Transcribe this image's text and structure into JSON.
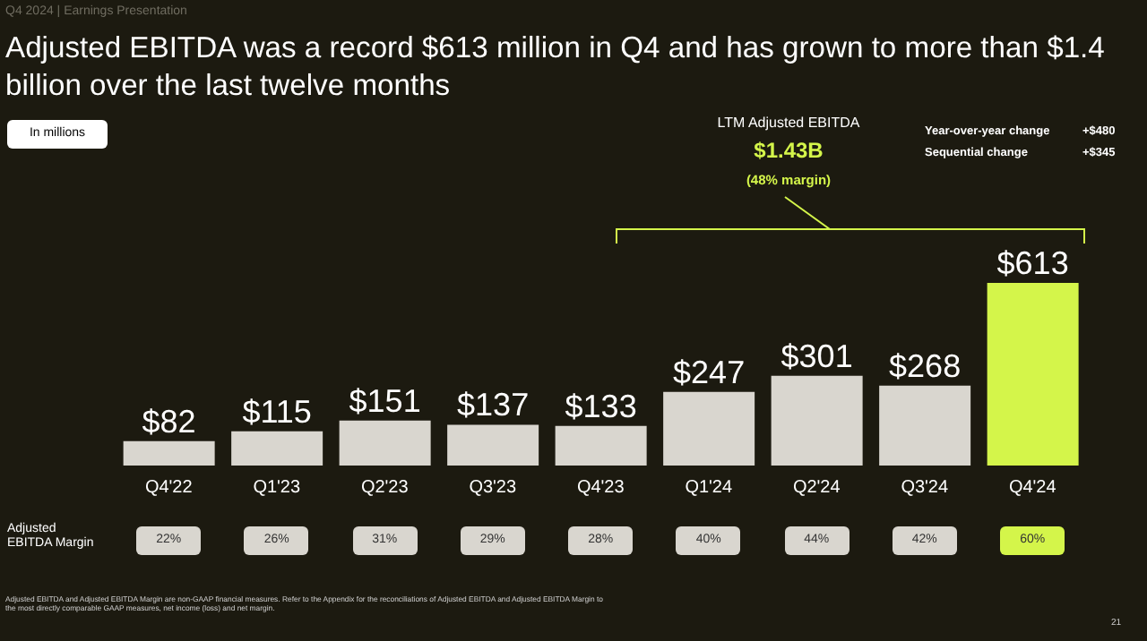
{
  "chart_data": {
    "type": "bar",
    "title": "Adjusted EBITDA was a record $613 million in Q4 and has grown to more than $1.4 billion over the last twelve months",
    "categories": [
      "Q4'22",
      "Q1'23",
      "Q2'23",
      "Q3'23",
      "Q4'23",
      "Q1'24",
      "Q2'24",
      "Q3'24",
      "Q4'24"
    ],
    "values": [
      82,
      115,
      151,
      137,
      133,
      247,
      301,
      268,
      613
    ],
    "colors": [
      "#d9d6cf",
      "#d9d6cf",
      "#d9d6cf",
      "#d9d6cf",
      "#d9d6cf",
      "#d9d6cf",
      "#d9d6cf",
      "#d9d6cf",
      "#d4f54a"
    ],
    "value_labels": [
      "$82",
      "$115",
      "$151",
      "$137",
      "$133",
      "$247",
      "$301",
      "$268",
      "$613"
    ],
    "annotations": [
      "Q4 2024 | Earnings Presentation",
      "In millions",
      "LTM Adjusted EBITDA",
      "$1.43B",
      "(48% margin)",
      "Year-over-year change",
      "+$480",
      "Sequential change",
      "+$345",
      "Adjusted EBITDA Margin",
      "22%",
      "26%",
      "31%",
      "29%",
      "28%",
      "40%",
      "44%",
      "42%",
      "60%",
      "Adjusted EBITDA and Adjusted EBITDA Margin are non-GAAP financial measures. Refer to the Appendix for the reconciliations of Adjusted EBITDA and Adjusted EBITDA Margin to the most directly comparable GAAP measures, net income (loss) and net margin.",
      "21"
    ]
  }
}
